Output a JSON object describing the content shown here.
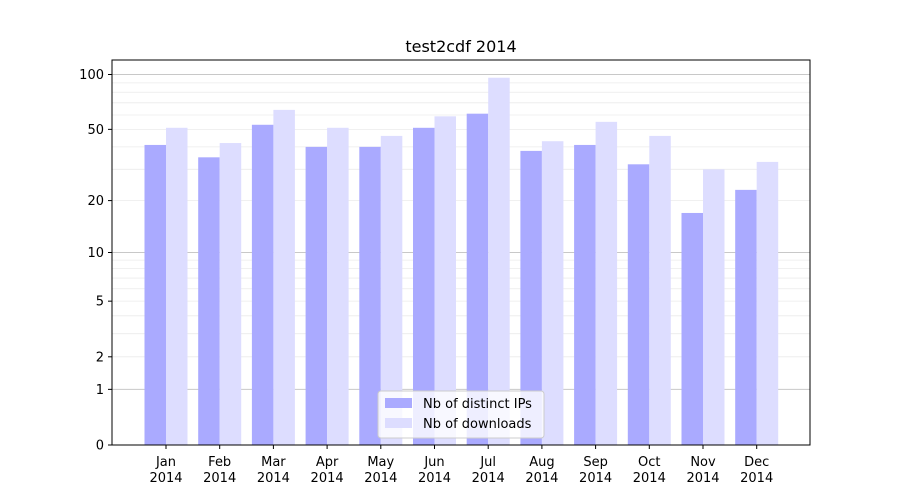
{
  "chart_data": {
    "type": "bar",
    "title": "test2cdf 2014",
    "xlabel": "",
    "ylabel": "",
    "yscale": "log(1+x)",
    "ylim": [
      0,
      120
    ],
    "yticks": [
      0,
      1,
      2,
      5,
      10,
      20,
      50,
      100
    ],
    "grid": true,
    "categories": [
      "Jan\n2014",
      "Feb\n2014",
      "Mar\n2014",
      "Apr\n2014",
      "May\n2014",
      "Jun\n2014",
      "Jul\n2014",
      "Aug\n2014",
      "Sep\n2014",
      "Oct\n2014",
      "Nov\n2014",
      "Dec\n2014"
    ],
    "series": [
      {
        "name": "Nb of distinct IPs",
        "color": "#aaaaff",
        "values": [
          41,
          35,
          53,
          40,
          40,
          51,
          61,
          38,
          41,
          32,
          17,
          23
        ]
      },
      {
        "name": "Nb of downloads",
        "color": "#ddddff",
        "values": [
          51,
          42,
          64,
          51,
          46,
          59,
          96,
          43,
          55,
          46,
          30,
          33
        ]
      }
    ],
    "legend": "bottom-center"
  }
}
